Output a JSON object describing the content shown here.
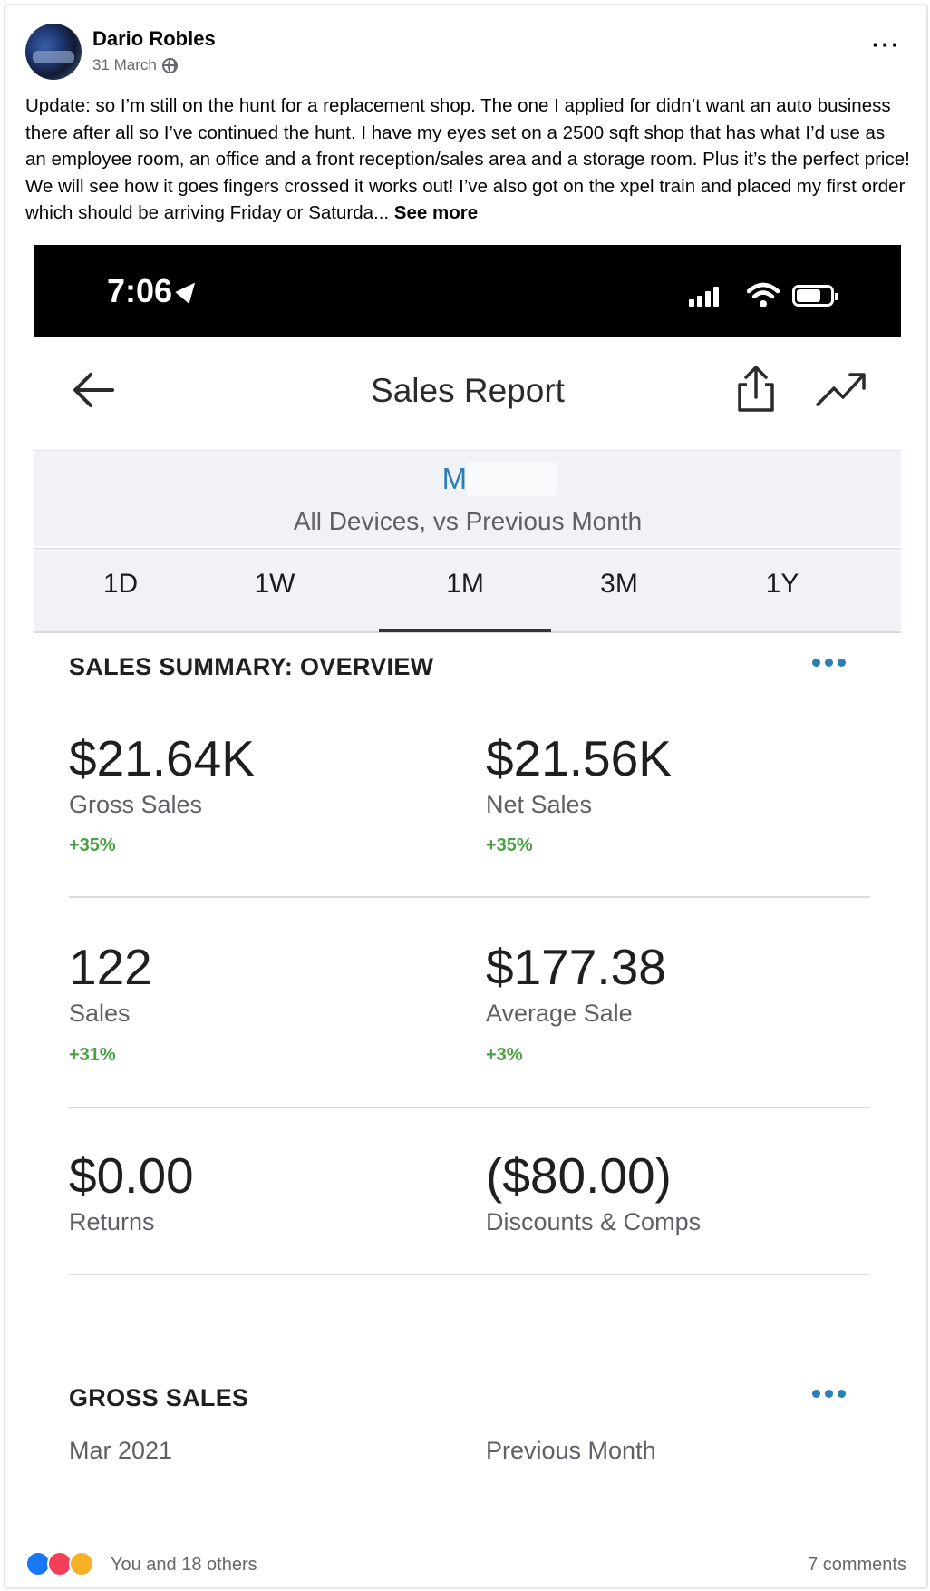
{
  "post": {
    "author": "Dario Robles",
    "date": "31 March",
    "text": "Update: so I’m still on the hunt for a replacement shop. The one I applied for didn’t want an auto business there after all so I’ve continued the hunt. I have my eyes set on a 2500 sqft shop that has what I’d use as an employee room, an office and a front reception/sales area and a storage room. Plus it’s the perfect price! We will see how it goes fingers crossed it works out! I’ve also got on the xpel train and placed my first order which should be arriving Friday or Saturda...",
    "see_more": "See more"
  },
  "phone": {
    "time": "7:06",
    "status_icons": [
      "location-arrow-icon",
      "signal-icon",
      "wifi-icon",
      "battery-icon"
    ]
  },
  "report": {
    "title": "Sales Report",
    "period_month": "Mar",
    "period_sub": "All Devices, vs Previous Month",
    "tabs": [
      "1D",
      "1W",
      "1M",
      "3M",
      "1Y"
    ],
    "active_tab": "1M",
    "summary_title": "SALES SUMMARY: OVERVIEW",
    "metrics": {
      "gross_sales": {
        "value": "$21.64K",
        "label": "Gross Sales",
        "change": "+35%"
      },
      "net_sales": {
        "value": "$21.56K",
        "label": "Net Sales",
        "change": "+35%"
      },
      "sales": {
        "value": "122",
        "label": "Sales",
        "change": "+31%"
      },
      "average_sale": {
        "value": "$177.38",
        "label": "Average Sale",
        "change": "+3%"
      },
      "returns": {
        "value": "$0.00",
        "label": "Returns"
      },
      "discounts": {
        "value": "($80.00)",
        "label": "Discounts & Comps"
      }
    },
    "gross_title": "GROSS SALES",
    "gross_col1": "Mar 2021",
    "gross_col2": "Previous Month",
    "accent_color": "#2a7fb7",
    "positive_color": "#4aa144"
  },
  "footer": {
    "reactions": [
      "like-icon",
      "love-icon",
      "wow-icon"
    ],
    "reaction_text": "You and 18 others",
    "comments": "7 comments"
  }
}
